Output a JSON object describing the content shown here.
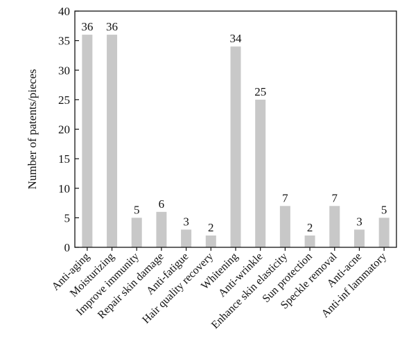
{
  "chart_data": {
    "type": "bar",
    "title": "",
    "xlabel": "",
    "ylabel": "Number of patents/pieces",
    "categories": [
      "Anti-aging",
      "Moisturizing",
      "Improve immunity",
      "Repair skin damage",
      "Anti-fatigue",
      "Hair quality recovery",
      "Whitening",
      "Anti-wrinkle",
      "Enhance skin elasticity",
      "Sun protection",
      "Speckle removal",
      "Anti-acne",
      "Anti-inf lammatory"
    ],
    "values": [
      36,
      36,
      5,
      6,
      3,
      2,
      34,
      25,
      7,
      2,
      7,
      3,
      5
    ],
    "data_labels": [
      "36",
      "36",
      "5",
      "6",
      "3",
      "2",
      "34",
      "25",
      "7",
      "2",
      "7",
      "3",
      "5"
    ],
    "ylim": [
      0,
      40
    ],
    "yticks": [
      "0",
      "5",
      "10",
      "15",
      "20",
      "25",
      "30",
      "35",
      "40"
    ],
    "grid": false,
    "legend": "none",
    "bar_color": "#c8c8c8",
    "axis_color": "#111111"
  }
}
